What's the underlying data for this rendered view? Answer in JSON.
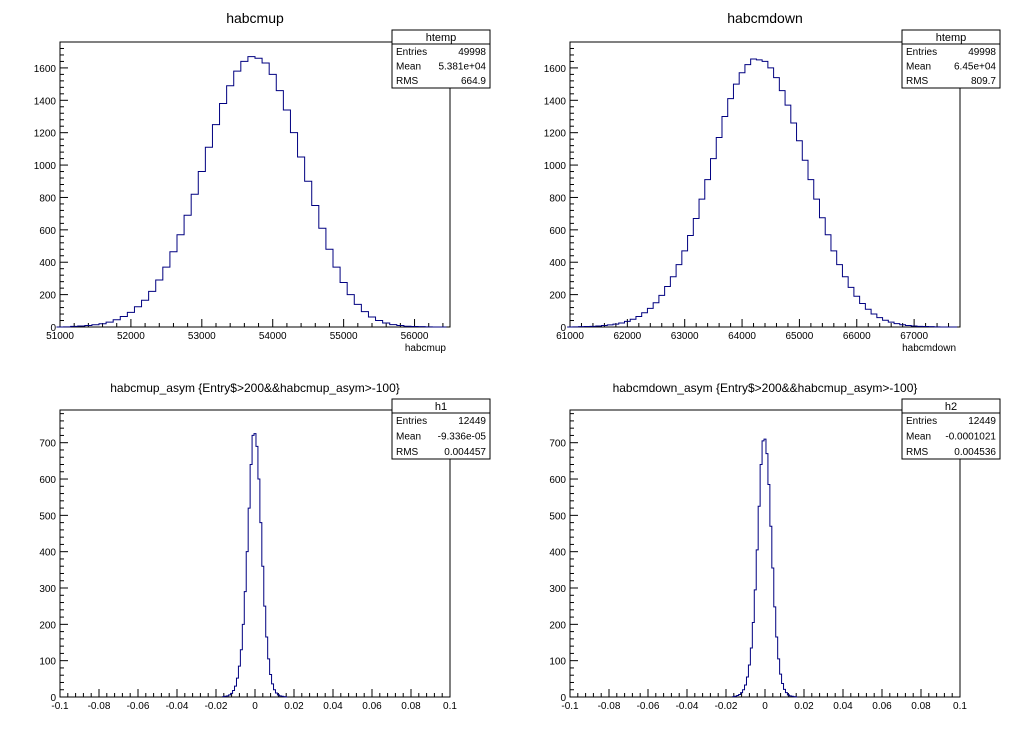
{
  "chart_data": [
    {
      "type": "histogram",
      "title": "habcmup",
      "xlabel": "habcmup",
      "xlim": [
        51000,
        56500
      ],
      "ylim": [
        0,
        1760
      ],
      "xticks": [
        51000,
        52000,
        53000,
        54000,
        55000,
        56000
      ],
      "xtick_labels": [
        "51000",
        "52000",
        "53000",
        "54000",
        "55000",
        "56000"
      ],
      "yticks": [
        0,
        200,
        400,
        600,
        800,
        1000,
        1200,
        1400,
        1600
      ],
      "ytick_labels": [
        "0",
        "200",
        "400",
        "600",
        "800",
        "1000",
        "1200",
        "1400",
        "1600"
      ],
      "stats": {
        "name": "htemp",
        "rows": [
          [
            "Entries",
            "49998"
          ],
          [
            "Mean",
            "5.381e+04"
          ],
          [
            "RMS",
            "664.9"
          ]
        ]
      },
      "series": [
        {
          "x": [
            51000,
            51100,
            51200,
            51300,
            51400,
            51500,
            51600,
            51700,
            51800,
            51900,
            52000,
            52100,
            52200,
            52300,
            52400,
            52500,
            52600,
            52700,
            52800,
            52900,
            53000,
            53100,
            53200,
            53300,
            53400,
            53500,
            53600,
            53700,
            53800,
            53900,
            54000,
            54100,
            54200,
            54300,
            54400,
            54500,
            54600,
            54700,
            54800,
            54900,
            55000,
            55100,
            55200,
            55300,
            55400,
            55500,
            55600,
            55700,
            55800,
            55900,
            56000,
            56100,
            56200,
            56300,
            56400,
            56500
          ],
          "values": [
            0,
            1,
            4,
            6,
            9,
            14,
            20,
            30,
            45,
            65,
            90,
            125,
            165,
            220,
            290,
            370,
            465,
            570,
            690,
            820,
            960,
            1110,
            1250,
            1380,
            1490,
            1580,
            1640,
            1670,
            1660,
            1630,
            1560,
            1460,
            1340,
            1200,
            1050,
            900,
            750,
            610,
            480,
            370,
            275,
            200,
            140,
            95,
            62,
            40,
            25,
            15,
            9,
            5,
            3,
            2,
            1,
            0,
            0
          ]
        }
      ]
    },
    {
      "type": "histogram",
      "title": "habcmdown",
      "xlabel": "habcmdown",
      "xlim": [
        61000,
        67800
      ],
      "ylim": [
        0,
        1760
      ],
      "xticks": [
        61000,
        62000,
        63000,
        64000,
        65000,
        66000,
        67000
      ],
      "xtick_labels": [
        "61000",
        "62000",
        "63000",
        "64000",
        "65000",
        "66000",
        "67000"
      ],
      "yticks": [
        0,
        200,
        400,
        600,
        800,
        1000,
        1200,
        1400,
        1600
      ],
      "ytick_labels": [
        "0",
        "200",
        "400",
        "600",
        "800",
        "1000",
        "1200",
        "1400",
        "1600"
      ],
      "stats": {
        "name": "htemp",
        "rows": [
          [
            "Entries",
            "49998"
          ],
          [
            "Mean",
            "6.45e+04"
          ],
          [
            "RMS",
            "809.7"
          ]
        ]
      },
      "series": [
        {
          "x": [
            61000,
            61100,
            61200,
            61300,
            61400,
            61500,
            61600,
            61700,
            61800,
            61900,
            62000,
            62100,
            62200,
            62300,
            62400,
            62500,
            62600,
            62700,
            62800,
            62900,
            63000,
            63100,
            63200,
            63300,
            63400,
            63500,
            63600,
            63700,
            63800,
            63900,
            64000,
            64100,
            64200,
            64300,
            64400,
            64500,
            64600,
            64700,
            64800,
            64900,
            65000,
            65100,
            65200,
            65300,
            65400,
            65500,
            65600,
            65700,
            65800,
            65900,
            66000,
            66100,
            66200,
            66300,
            66400,
            66500,
            66600,
            66700,
            66800,
            66900,
            67000,
            67100,
            67200,
            67300,
            67400,
            67500,
            67600,
            67700
          ],
          "values": [
            0,
            1,
            2,
            3,
            4,
            6,
            9,
            13,
            18,
            25,
            35,
            48,
            65,
            88,
            115,
            150,
            195,
            250,
            310,
            385,
            470,
            565,
            670,
            790,
            910,
            1040,
            1170,
            1300,
            1410,
            1500,
            1570,
            1620,
            1655,
            1650,
            1640,
            1600,
            1540,
            1460,
            1370,
            1260,
            1150,
            1030,
            910,
            790,
            675,
            570,
            470,
            385,
            310,
            245,
            190,
            145,
            110,
            80,
            58,
            42,
            30,
            21,
            14,
            9,
            6,
            4,
            3,
            2,
            1,
            0,
            0,
            0
          ]
        }
      ]
    },
    {
      "type": "histogram",
      "title": "habcmup_asym {Entry$>200&&habcmup_asym>-100}",
      "xlabel": "",
      "xlim": [
        -0.1,
        0.1
      ],
      "ylim": [
        0,
        790
      ],
      "xticks": [
        -0.1,
        -0.08,
        -0.06,
        -0.04,
        -0.02,
        0,
        0.02,
        0.04,
        0.06,
        0.08,
        0.1
      ],
      "xtick_labels": [
        "-0.1",
        "-0.08",
        "-0.06",
        "-0.04",
        "-0.02",
        "0",
        "0.02",
        "0.04",
        "0.06",
        "0.08",
        "0.1"
      ],
      "yticks": [
        0,
        100,
        200,
        300,
        400,
        500,
        600,
        700
      ],
      "ytick_labels": [
        "0",
        "100",
        "200",
        "300",
        "400",
        "500",
        "600",
        "700"
      ],
      "stats": {
        "name": "h1",
        "rows": [
          [
            "Entries",
            "12449"
          ],
          [
            "Mean",
            "-9.336e-05"
          ],
          [
            "RMS",
            "0.004457"
          ]
        ]
      },
      "series": [
        {
          "x": [
            -0.016,
            -0.015,
            -0.014,
            -0.013,
            -0.012,
            -0.011,
            -0.01,
            -0.009,
            -0.008,
            -0.007,
            -0.006,
            -0.005,
            -0.004,
            -0.003,
            -0.002,
            -0.001,
            0.0,
            0.001,
            0.002,
            0.003,
            0.004,
            0.005,
            0.006,
            0.007,
            0.008,
            0.009,
            0.01,
            0.011,
            0.012,
            0.013,
            0.014,
            0.015,
            0.016
          ],
          "values": [
            1,
            2,
            3,
            6,
            10,
            18,
            30,
            52,
            85,
            130,
            200,
            290,
            400,
            520,
            640,
            720,
            725,
            690,
            600,
            480,
            360,
            250,
            165,
            105,
            62,
            36,
            20,
            11,
            6,
            3,
            2,
            1,
            0
          ]
        }
      ]
    },
    {
      "type": "histogram",
      "title": "habcmdown_asym {Entry$>200&&habcmup_asym>-100}",
      "xlabel": "",
      "xlim": [
        -0.1,
        0.1
      ],
      "ylim": [
        0,
        790
      ],
      "xticks": [
        -0.1,
        -0.08,
        -0.06,
        -0.04,
        -0.02,
        0,
        0.02,
        0.04,
        0.06,
        0.08,
        0.1
      ],
      "xtick_labels": [
        "-0.1",
        "-0.08",
        "-0.06",
        "-0.04",
        "-0.02",
        "0",
        "0.02",
        "0.04",
        "0.06",
        "0.08",
        "0.1"
      ],
      "yticks": [
        0,
        100,
        200,
        300,
        400,
        500,
        600,
        700
      ],
      "ytick_labels": [
        "0",
        "100",
        "200",
        "300",
        "400",
        "500",
        "600",
        "700"
      ],
      "stats": {
        "name": "h2",
        "rows": [
          [
            "Entries",
            "12449"
          ],
          [
            "Mean",
            "-0.0001021"
          ],
          [
            "RMS",
            "0.004536"
          ]
        ]
      },
      "series": [
        {
          "x": [
            -0.016,
            -0.015,
            -0.014,
            -0.013,
            -0.012,
            -0.011,
            -0.01,
            -0.009,
            -0.008,
            -0.007,
            -0.006,
            -0.005,
            -0.004,
            -0.003,
            -0.002,
            -0.001,
            0.0,
            0.001,
            0.002,
            0.003,
            0.004,
            0.005,
            0.006,
            0.007,
            0.008,
            0.009,
            0.01,
            0.011,
            0.012,
            0.013,
            0.014,
            0.015,
            0.016
          ],
          "values": [
            1,
            2,
            4,
            7,
            12,
            20,
            33,
            55,
            88,
            135,
            205,
            295,
            405,
            525,
            640,
            705,
            710,
            670,
            585,
            470,
            355,
            248,
            165,
            105,
            63,
            37,
            21,
            12,
            6,
            3,
            2,
            1,
            0
          ]
        }
      ]
    }
  ],
  "colors": {
    "line_top": "#000080",
    "line_bottom": "#000080",
    "frame": "#000000"
  }
}
